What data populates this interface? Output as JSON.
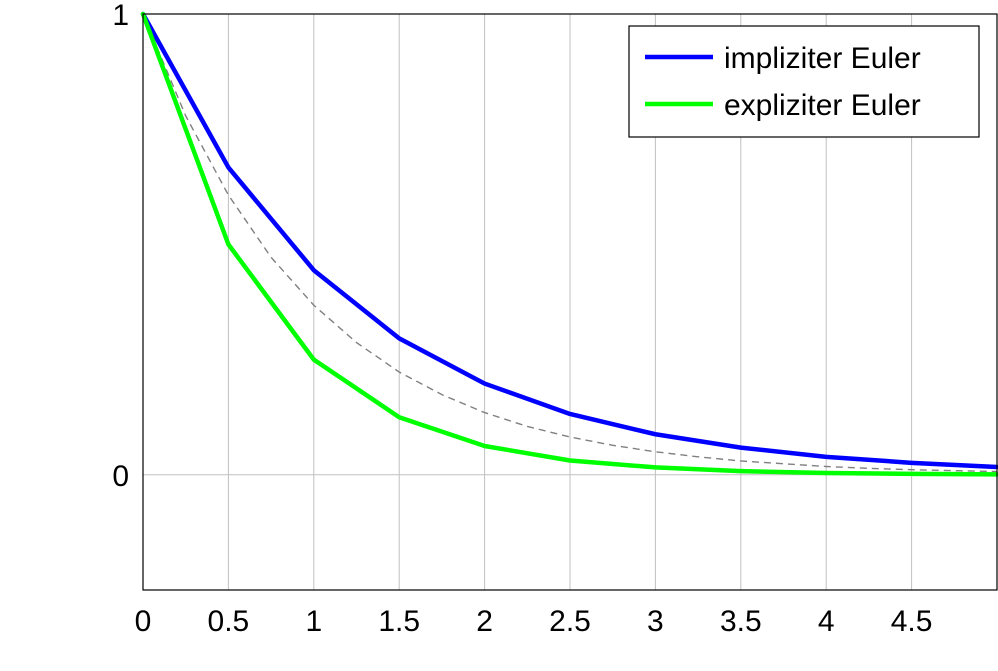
{
  "chart_data": {
    "type": "line",
    "title": "",
    "xlabel": "",
    "ylabel": "",
    "xlim": [
      0,
      5
    ],
    "ylim": [
      -0.25,
      1
    ],
    "grid": "vertical",
    "legend_position": "top-right",
    "x_ticks": [
      {
        "value": 0,
        "label": "0"
      },
      {
        "value": 0.5,
        "label": "0.5"
      },
      {
        "value": 1,
        "label": "1"
      },
      {
        "value": 1.5,
        "label": "1.5"
      },
      {
        "value": 2,
        "label": "2"
      },
      {
        "value": 2.5,
        "label": "2.5"
      },
      {
        "value": 3,
        "label": "3"
      },
      {
        "value": 3.5,
        "label": "3.5"
      },
      {
        "value": 4,
        "label": "4"
      },
      {
        "value": 4.5,
        "label": "4.5"
      }
    ],
    "y_ticks": [
      {
        "value": 0,
        "label": "0"
      },
      {
        "value": 1,
        "label": "1"
      }
    ],
    "series": [
      {
        "name": "impliziter Euler",
        "color": "#0000ff",
        "x": [
          0,
          0.5,
          1,
          1.5,
          2,
          2.5,
          3,
          3.5,
          4,
          4.5,
          5
        ],
        "y": [
          1,
          0.667,
          0.444,
          0.296,
          0.198,
          0.132,
          0.088,
          0.059,
          0.039,
          0.026,
          0.017
        ]
      },
      {
        "name": "expliziter Euler",
        "color": "#00ff00",
        "x": [
          0,
          0.5,
          1,
          1.5,
          2,
          2.5,
          3,
          3.5,
          4,
          4.5,
          5
        ],
        "y": [
          1,
          0.5,
          0.25,
          0.125,
          0.0625,
          0.031,
          0.016,
          0.008,
          0.004,
          0.002,
          0.001
        ]
      }
    ],
    "reference_curve": {
      "style": "dashed",
      "color": "#808080",
      "x": [
        0,
        0.25,
        0.5,
        0.75,
        1,
        1.25,
        1.5,
        1.75,
        2,
        2.25,
        2.5,
        2.75,
        3,
        3.25,
        3.5,
        3.75,
        4,
        4.25,
        4.5,
        4.75,
        5
      ],
      "y": [
        1,
        0.779,
        0.607,
        0.472,
        0.368,
        0.287,
        0.223,
        0.174,
        0.135,
        0.105,
        0.082,
        0.064,
        0.05,
        0.039,
        0.03,
        0.024,
        0.018,
        0.014,
        0.011,
        0.009,
        0.007
      ]
    }
  }
}
